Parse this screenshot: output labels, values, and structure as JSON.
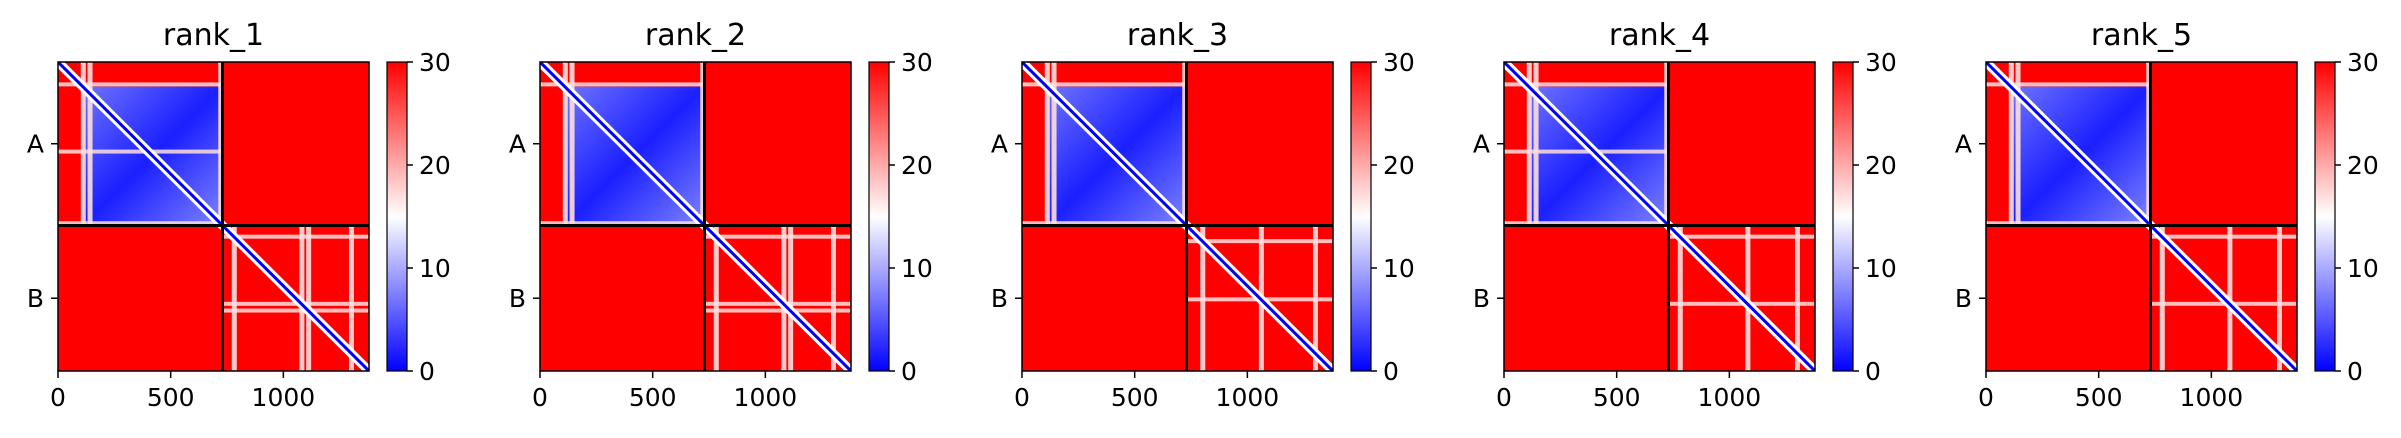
{
  "figure": {
    "type": "heatmap-grid",
    "colormap": {
      "low": "#0000ff",
      "mid": "#ffffff",
      "high": "#ff0000"
    }
  },
  "chart_data": [
    {
      "type": "heatmap",
      "title": "rank_1",
      "chains": [
        "A",
        "B"
      ],
      "chain_boundary": 730,
      "seq_length": 1380,
      "xticks": [
        0,
        500,
        1000
      ],
      "clim": [
        0,
        30
      ],
      "colorbar_ticks": [
        0,
        10,
        20,
        30
      ],
      "blue_block": [
        0,
        730
      ],
      "low_diagonal": true,
      "stripes": [
        {
          "axis": "col",
          "range": [
            0,
            730
          ],
          "at": [
            110,
            140,
            720
          ]
        },
        {
          "axis": "col",
          "range": [
            730,
            1380
          ],
          "at": [
            780,
            1080,
            1110,
            1300
          ]
        },
        {
          "axis": "row",
          "range": [
            0,
            730
          ],
          "at": [
            100,
            400,
            720
          ]
        },
        {
          "axis": "row",
          "range": [
            730,
            1380
          ],
          "at": [
            780,
            1080,
            1110
          ]
        }
      ]
    },
    {
      "type": "heatmap",
      "title": "rank_2",
      "chains": [
        "A",
        "B"
      ],
      "chain_boundary": 730,
      "seq_length": 1380,
      "xticks": [
        0,
        500,
        1000
      ],
      "clim": [
        0,
        30
      ],
      "colorbar_ticks": [
        0,
        10,
        20,
        30
      ],
      "blue_block": [
        0,
        730
      ],
      "low_diagonal": true,
      "stripes": [
        {
          "axis": "col",
          "range": [
            0,
            730
          ],
          "at": [
            110,
            140,
            720
          ]
        },
        {
          "axis": "col",
          "range": [
            730,
            1380
          ],
          "at": [
            780,
            1080,
            1110,
            1300
          ]
        },
        {
          "axis": "row",
          "range": [
            0,
            730
          ],
          "at": [
            100,
            720
          ]
        },
        {
          "axis": "row",
          "range": [
            730,
            1380
          ],
          "at": [
            780,
            1080,
            1110
          ]
        }
      ]
    },
    {
      "type": "heatmap",
      "title": "rank_3",
      "chains": [
        "A",
        "B"
      ],
      "chain_boundary": 730,
      "seq_length": 1380,
      "xticks": [
        0,
        500,
        1000
      ],
      "clim": [
        0,
        30
      ],
      "colorbar_ticks": [
        0,
        10,
        20,
        30
      ],
      "blue_block": [
        0,
        730
      ],
      "low_diagonal": true,
      "stripes": [
        {
          "axis": "col",
          "range": [
            0,
            730
          ],
          "at": [
            110,
            140,
            720
          ]
        },
        {
          "axis": "col",
          "range": [
            730,
            1380
          ],
          "at": [
            800,
            1060,
            1300
          ]
        },
        {
          "axis": "row",
          "range": [
            0,
            730
          ],
          "at": [
            100,
            720
          ]
        },
        {
          "axis": "row",
          "range": [
            730,
            1380
          ],
          "at": [
            800,
            1060
          ]
        }
      ]
    },
    {
      "type": "heatmap",
      "title": "rank_4",
      "chains": [
        "A",
        "B"
      ],
      "chain_boundary": 730,
      "seq_length": 1380,
      "xticks": [
        0,
        500,
        1000
      ],
      "clim": [
        0,
        30
      ],
      "colorbar_ticks": [
        0,
        10,
        20,
        30
      ],
      "blue_block": [
        0,
        730
      ],
      "low_diagonal": true,
      "stripes": [
        {
          "axis": "col",
          "range": [
            0,
            730
          ],
          "at": [
            110,
            140,
            720
          ]
        },
        {
          "axis": "col",
          "range": [
            730,
            1380
          ],
          "at": [
            780,
            1080,
            1300
          ]
        },
        {
          "axis": "row",
          "range": [
            0,
            730
          ],
          "at": [
            100,
            400,
            720
          ]
        },
        {
          "axis": "row",
          "range": [
            730,
            1380
          ],
          "at": [
            780,
            1080
          ]
        }
      ]
    },
    {
      "type": "heatmap",
      "title": "rank_5",
      "chains": [
        "A",
        "B"
      ],
      "chain_boundary": 730,
      "seq_length": 1380,
      "xticks": [
        0,
        500,
        1000
      ],
      "clim": [
        0,
        30
      ],
      "colorbar_ticks": [
        0,
        10,
        20,
        30
      ],
      "blue_block": [
        0,
        730
      ],
      "low_diagonal": true,
      "stripes": [
        {
          "axis": "col",
          "range": [
            0,
            730
          ],
          "at": [
            110,
            140,
            720
          ]
        },
        {
          "axis": "col",
          "range": [
            730,
            1380
          ],
          "at": [
            780,
            1080,
            1300
          ]
        },
        {
          "axis": "row",
          "range": [
            0,
            730
          ],
          "at": [
            100,
            720
          ]
        },
        {
          "axis": "row",
          "range": [
            730,
            1380
          ],
          "at": [
            780,
            1080
          ]
        }
      ]
    }
  ]
}
